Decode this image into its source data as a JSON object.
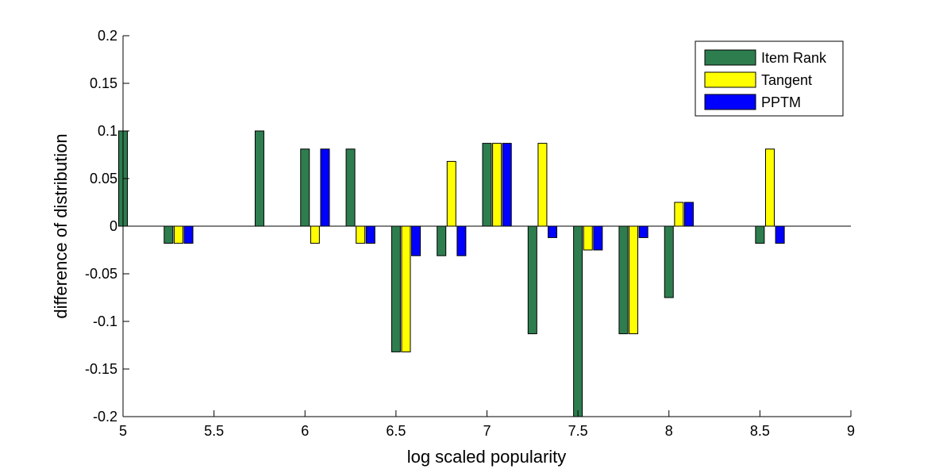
{
  "colors": {
    "Item Rank": "#2e7d4f",
    "Tangent": "#ffff00",
    "PPTM": "#0000ff",
    "axis": "#000000",
    "background": "#ffffff"
  },
  "chart_data": {
    "type": "bar",
    "title": "",
    "xlabel": "log scaled popularity",
    "ylabel": "difference of distribution",
    "xlim": [
      5,
      9
    ],
    "ylim": [
      -0.2,
      0.2
    ],
    "x_ticks": [
      5,
      5.5,
      6,
      6.5,
      7,
      7.5,
      8,
      8.5,
      9
    ],
    "x_tick_labels": [
      "5",
      "5.5",
      "6",
      "6.5",
      "7",
      "7.5",
      "8",
      "8.5",
      "9"
    ],
    "y_ticks": [
      -0.2,
      -0.15,
      -0.1,
      -0.05,
      0,
      0.05,
      0.1,
      0.15,
      0.2
    ],
    "y_tick_labels": [
      "-0.2",
      "-0.15",
      "-0.1",
      "-0.05",
      "0",
      "0.05",
      "0.1",
      "0.15",
      "0.2"
    ],
    "grid": false,
    "legend_position": "top-right",
    "x": [
      5.0,
      5.25,
      5.5,
      5.75,
      6.0,
      6.25,
      6.5,
      6.75,
      7.0,
      7.25,
      7.5,
      7.75,
      8.0,
      8.25,
      8.5
    ],
    "series": [
      {
        "name": "Item Rank",
        "values": [
          0.1,
          -0.018,
          0,
          0.1,
          0.081,
          0.081,
          -0.132,
          -0.031,
          0.087,
          -0.113,
          -0.2,
          -0.113,
          -0.075,
          0,
          -0.018
        ]
      },
      {
        "name": "Tangent",
        "values": [
          0,
          -0.018,
          0,
          0,
          -0.018,
          -0.018,
          -0.132,
          0.068,
          0.087,
          0.087,
          -0.025,
          -0.113,
          0.025,
          0,
          0.081
        ]
      },
      {
        "name": "PPTM",
        "values": [
          0,
          -0.018,
          0,
          0,
          0.081,
          -0.018,
          -0.031,
          -0.031,
          0.087,
          -0.012,
          -0.025,
          -0.012,
          0.025,
          0,
          -0.018
        ]
      }
    ]
  }
}
